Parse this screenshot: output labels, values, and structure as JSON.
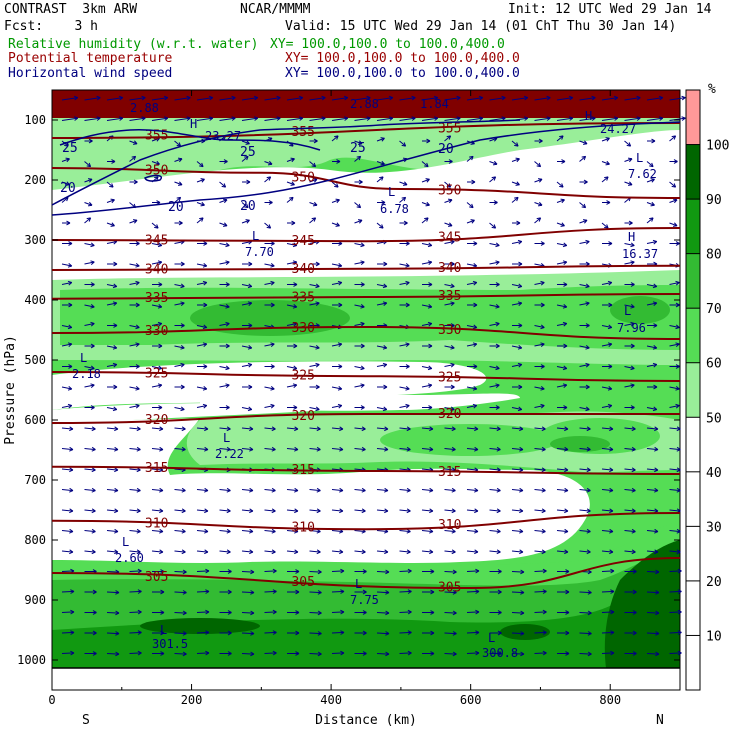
{
  "header": {
    "title_left": "CONTRAST  3km ARW",
    "producer": "NCAR/MMMM",
    "init": "Init: 12 UTC Wed 29 Jan 14",
    "fcst": "Fcst:    3 h",
    "valid": "Valid: 15 UTC Wed 29 Jan 14 (01 ChT Thu 30 Jan 14)",
    "fields": [
      {
        "name": "Relative humidity (w.r.t. water)",
        "xy": "XY= 100.0,100.0 to 100.0,400.0",
        "color": "#009900"
      },
      {
        "name": "Potential temperature",
        "xy": "XY= 100.0,100.0 to 100.0,400.0",
        "color": "#990000"
      },
      {
        "name": "Horizontal wind speed",
        "xy": "XY= 100.0,100.0 to 100.0,400.0",
        "color": "#000080"
      }
    ]
  },
  "chart_data": {
    "type": "heatmap",
    "xlabel": "Distance (km)",
    "ylabel": "Pressure (hPa)",
    "xlim": [
      0,
      900
    ],
    "ylim": [
      1050,
      50
    ],
    "x_ticks": [
      "0",
      "200",
      "400",
      "600",
      "800"
    ],
    "y_ticks": [
      "100",
      "200",
      "300",
      "400",
      "500",
      "600",
      "700",
      "800",
      "900",
      "1000"
    ],
    "x_ends": {
      "left": "S",
      "right": "N"
    },
    "colorbar": {
      "unit": "%",
      "ticks": [
        "10",
        "20",
        "30",
        "40",
        "50",
        "60",
        "70",
        "80",
        "90",
        "100"
      ],
      "colors": {
        "lt50": "#ffffff",
        "50-60": "#99ee99",
        "60-70": "#55dd55",
        "70-80": "#33bb33",
        "80-90": "#119911",
        "90-100": "#006600",
        "gt100": "#ff9999"
      }
    },
    "theta_contours": [
      {
        "value": 355,
        "label": "355",
        "levels": [
          [
            0,
            130
          ],
          [
            900,
            105
          ]
        ]
      },
      {
        "value": 350,
        "label": "350",
        "levels": [
          [
            0,
            180
          ],
          [
            300,
            188
          ],
          [
            500,
            215
          ],
          [
            900,
            230
          ]
        ]
      },
      {
        "value": 345,
        "label": "345",
        "levels": [
          [
            0,
            300
          ],
          [
            450,
            302
          ],
          [
            900,
            280
          ]
        ]
      },
      {
        "value": 340,
        "label": "340",
        "levels": [
          [
            0,
            350
          ],
          [
            450,
            348
          ],
          [
            900,
            343
          ]
        ]
      },
      {
        "value": 335,
        "label": "335",
        "levels": [
          [
            0,
            398
          ],
          [
            450,
            395
          ],
          [
            900,
            390
          ]
        ]
      },
      {
        "value": 330,
        "label": "330",
        "levels": [
          [
            0,
            455
          ],
          [
            450,
            445
          ],
          [
            900,
            465
          ]
        ]
      },
      {
        "value": 325,
        "label": "325",
        "levels": [
          [
            0,
            520
          ],
          [
            450,
            527
          ],
          [
            900,
            535
          ]
        ]
      },
      {
        "value": 320,
        "label": "320",
        "levels": [
          [
            0,
            605
          ],
          [
            450,
            590
          ],
          [
            900,
            590
          ]
        ]
      },
      {
        "value": 315,
        "label": "315",
        "levels": [
          [
            0,
            678
          ],
          [
            450,
            685
          ],
          [
            900,
            690
          ]
        ]
      },
      {
        "value": 310,
        "label": "310",
        "levels": [
          [
            0,
            768
          ],
          [
            450,
            782
          ],
          [
            900,
            755
          ]
        ]
      },
      {
        "value": 305,
        "label": "305",
        "levels": [
          [
            0,
            855
          ],
          [
            600,
            880
          ],
          [
            900,
            830
          ]
        ]
      }
    ],
    "wind_contours_labels": [
      "25",
      "20",
      "25",
      "20",
      "20",
      "20",
      "25"
    ],
    "wind_max_min": [
      {
        "type": "H",
        "value": "23.27"
      },
      {
        "type": "H",
        "value": "24.27"
      },
      {
        "type": "L",
        "value": "7.62"
      },
      {
        "type": "L",
        "value": "6.78"
      },
      {
        "type": "L",
        "value": "7.70"
      },
      {
        "type": "H",
        "value": "16.37"
      },
      {
        "type": "L",
        "value": "7.96"
      },
      {
        "type": "L",
        "value": "2.18"
      },
      {
        "type": "L",
        "value": "2.22"
      },
      {
        "type": "L",
        "value": "2.60"
      },
      {
        "type": "L",
        "value": "7.75"
      },
      {
        "type": "L",
        "value": "301.5"
      },
      {
        "type": "L",
        "value": "300.8"
      },
      {
        "type": "L",
        "value": "1.84"
      },
      {
        "type": "H",
        "value": "2.88"
      },
      {
        "type": "H",
        "value": "2.88"
      }
    ]
  }
}
